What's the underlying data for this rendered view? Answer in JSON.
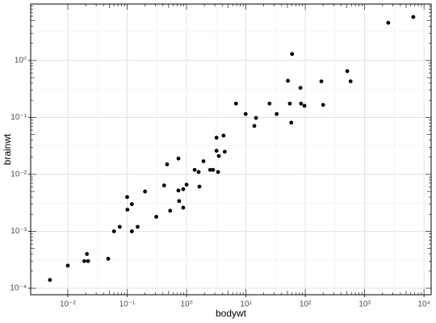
{
  "chart_data": {
    "type": "scatter",
    "x_label": "bodywt",
    "y_label": "brainwt",
    "log_x": true,
    "log_y": true,
    "grid": true,
    "color": "#000000",
    "xlim": [
      0.00237,
      13200
    ],
    "ylim": [
      7.7e-05,
      9.8
    ],
    "xticks": [
      {
        "value": 0.01,
        "label": "10⁻²"
      },
      {
        "value": 0.1,
        "label": "10⁻¹"
      },
      {
        "value": 1,
        "label": "10⁰"
      },
      {
        "value": 10,
        "label": "10¹"
      },
      {
        "value": 100,
        "label": "10²"
      },
      {
        "value": 1000,
        "label": "10³"
      },
      {
        "value": 10000,
        "label": "10⁴"
      }
    ],
    "yticks": [
      {
        "value": 0.0001,
        "label": "10⁻⁴"
      },
      {
        "value": 0.001,
        "label": "10⁻³"
      },
      {
        "value": 0.01,
        "label": "10⁻²"
      },
      {
        "value": 0.1,
        "label": "10⁻¹"
      },
      {
        "value": 1,
        "label": "10⁰"
      }
    ],
    "x": [
      0.005,
      0.01,
      0.019,
      0.021,
      0.022,
      0.048,
      0.06,
      0.075,
      0.1,
      0.101,
      0.12,
      0.12,
      0.15,
      0.2,
      0.31,
      0.42,
      0.47,
      0.53,
      0.73,
      0.73,
      0.75,
      0.88,
      0.88,
      1.0,
      1.37,
      1.6,
      1.65,
      1.93,
      2.5,
      2.8,
      3.2,
      3.2,
      3.4,
      3.5,
      4.2,
      4.4,
      6.8,
      9.9,
      13.9,
      14.8,
      25,
      33,
      51,
      55,
      58,
      60,
      83,
      85,
      97,
      187,
      200,
      510,
      580,
      2500,
      6600
    ],
    "y": [
      0.00014,
      0.00025,
      0.0003,
      0.0004,
      0.0003,
      0.00033,
      0.001,
      0.0012,
      0.004,
      0.0024,
      0.003,
      0.001,
      0.0012,
      0.005,
      0.0018,
      0.0064,
      0.015,
      0.0023,
      0.019,
      0.0052,
      0.0034,
      0.0055,
      0.0026,
      0.0066,
      0.012,
      0.011,
      0.0061,
      0.017,
      0.012,
      0.012,
      0.026,
      0.044,
      0.011,
      0.021,
      0.048,
      0.025,
      0.175,
      0.115,
      0.071,
      0.098,
      0.175,
      0.115,
      0.44,
      0.175,
      0.081,
      1.3,
      0.33,
      0.175,
      0.16,
      0.43,
      0.166,
      0.65,
      0.43,
      4.6,
      5.8
    ]
  }
}
